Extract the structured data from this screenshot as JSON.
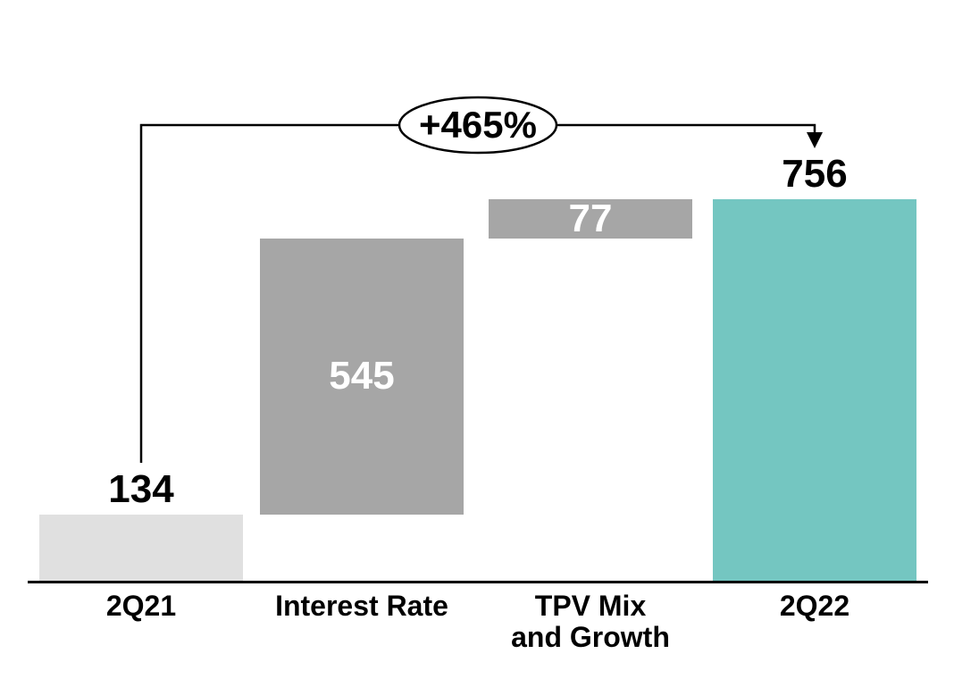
{
  "chart_data": {
    "type": "bar",
    "subtype": "waterfall",
    "title": "",
    "xlabel": "",
    "ylabel": "",
    "grid": false,
    "legend": false,
    "ylim": [
      0,
      800
    ],
    "categories": [
      "2Q21",
      "Interest Rate",
      "TPV Mix\nand Growth",
      "2Q22"
    ],
    "values": [
      134,
      545,
      77,
      756
    ],
    "bars": [
      {
        "category": "2Q21",
        "value": 134,
        "kind": "total-start",
        "start": 0,
        "end": 134,
        "color": "#e0e0e0",
        "value_label": "134",
        "value_label_position": "above",
        "value_label_color": "#000000"
      },
      {
        "category": "Interest Rate",
        "value": 545,
        "kind": "increase",
        "start": 134,
        "end": 679,
        "color": "#a6a6a6",
        "value_label": "545",
        "value_label_position": "inside",
        "value_label_color": "#ffffff"
      },
      {
        "category": "TPV Mix\nand Growth",
        "value": 77,
        "kind": "increase",
        "start": 679,
        "end": 756,
        "color": "#a6a6a6",
        "value_label": "77",
        "value_label_position": "inside",
        "value_label_color": "#ffffff"
      },
      {
        "category": "2Q22",
        "value": 756,
        "kind": "total-end",
        "start": 0,
        "end": 756,
        "color": "#74c6c1",
        "value_label": "756",
        "value_label_position": "above",
        "value_label_color": "#000000"
      }
    ],
    "annotation": {
      "text": "+465%",
      "from_category": "2Q21",
      "to_category": "2Q22"
    },
    "colors": {
      "start_bar": "#e0e0e0",
      "delta_bar": "#a6a6a6",
      "end_bar": "#74c6c1",
      "axis": "#000000",
      "value_label_dark": "#000000",
      "value_label_light": "#ffffff"
    }
  }
}
